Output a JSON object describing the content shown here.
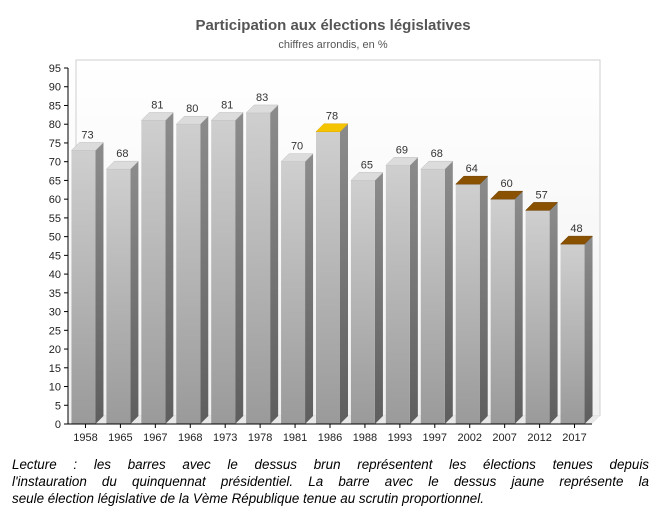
{
  "chart_data": {
    "type": "bar",
    "title": "Participation aux élections législatives",
    "subtitle": "chiffres arrondis, en %",
    "categories": [
      "1958",
      "1965",
      "1967",
      "1968",
      "1973",
      "1978",
      "1981",
      "1986",
      "1988",
      "1993",
      "1997",
      "2002",
      "2007",
      "2012",
      "2017"
    ],
    "values": [
      73,
      68,
      81,
      80,
      81,
      83,
      70,
      78,
      65,
      69,
      68,
      64,
      60,
      57,
      48
    ],
    "top_colors": [
      "grey",
      "grey",
      "grey",
      "grey",
      "grey",
      "grey",
      "grey",
      "yellow",
      "grey",
      "grey",
      "grey",
      "brown",
      "brown",
      "brown",
      "brown"
    ],
    "ylim": [
      0,
      95
    ],
    "yticks": [
      0,
      5,
      10,
      15,
      20,
      25,
      30,
      35,
      40,
      45,
      50,
      55,
      60,
      65,
      70,
      75,
      80,
      85,
      90,
      95
    ],
    "grid": false,
    "colors": {
      "bar": "#c8c8c8",
      "yellow": "#f5c400",
      "brown": "#8a5200",
      "title": "#555555"
    }
  },
  "caption": {
    "line1": "Lecture : les barres avec le dessus brun représentent les élections tenues depuis",
    "line2": "l'instauration du quinquennat présidentiel. La barre avec le dessus jaune représente la",
    "line3": "seule élection législative de la Vème République tenue au scrutin proportionnel."
  }
}
